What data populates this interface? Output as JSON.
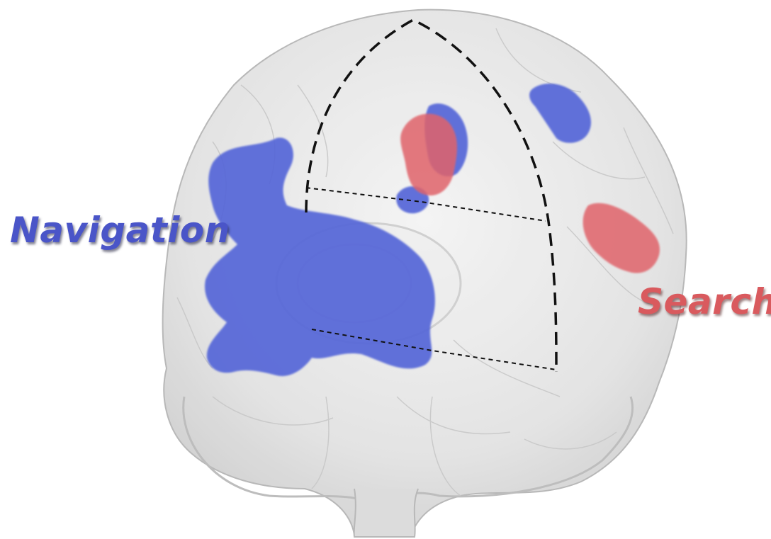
{
  "labels": {
    "navigation": "Navigation",
    "search": "Search"
  },
  "colors": {
    "navigation": "#5566d8",
    "search": "#e0646a",
    "brain_fill": "#e4e4e4",
    "brain_edge": "#b5b5b5",
    "dashed_line": "#111111"
  }
}
